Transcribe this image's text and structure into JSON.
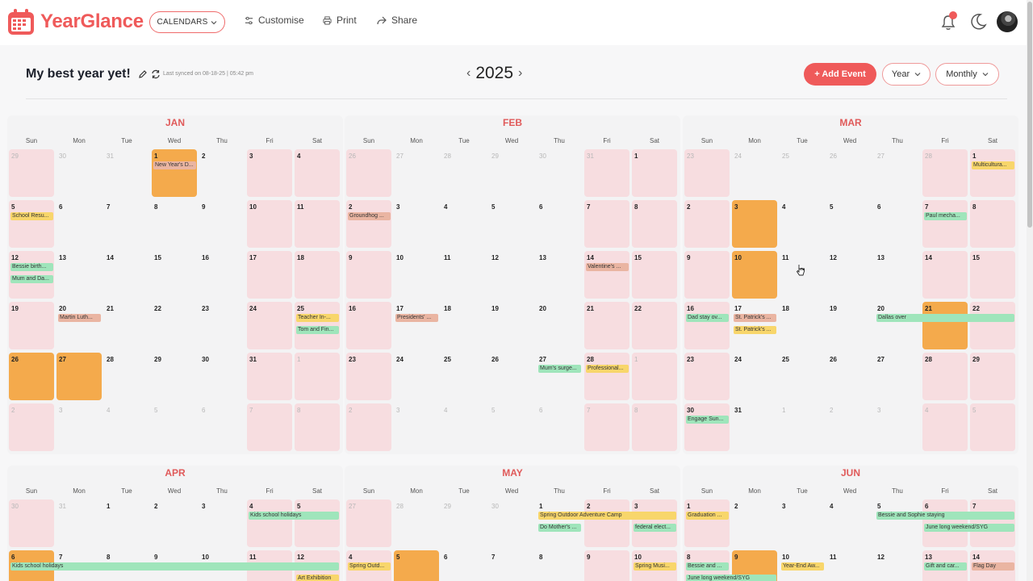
{
  "app": {
    "name": "YearGlance"
  },
  "topbar": {
    "calendars_label": "CALENDARS",
    "customise_label": "Customise",
    "print_label": "Print",
    "share_label": "Share"
  },
  "header": {
    "title": "My best year yet!",
    "sync_text": "Last synced on 08-18-25 | 05:42 pm",
    "year": "2025",
    "add_event_label": "+ Add Event",
    "view_select": "Year",
    "period_select": "Monthly"
  },
  "colors": {
    "accent": "#ef5a5a",
    "weekend": "#f7dde0",
    "highlight": "#f4aa4c",
    "event_yellow": "#f8d66b",
    "event_green": "#9fe5bb",
    "event_peach": "#eab5a2"
  },
  "weekdays": [
    "Sun",
    "Mon",
    "Tue",
    "Wed",
    "Thu",
    "Fri",
    "Sat"
  ],
  "months": [
    {
      "name": "JAN",
      "start": 29,
      "prevLen": 31,
      "len": 31,
      "offset": 3,
      "rows": 6,
      "highlights": [
        1,
        26,
        27
      ],
      "events": [
        {
          "day": 1,
          "label": "New Year's D...",
          "color": "p",
          "slot": 0
        },
        {
          "day": 5,
          "label": "School Resu...",
          "color": "y",
          "slot": 0
        },
        {
          "day": 12,
          "label": "Bessie birth...",
          "color": "g",
          "slot": 0
        },
        {
          "day": 12,
          "label": "Mum and Da...",
          "color": "g",
          "slot": 1
        },
        {
          "day": 20,
          "label": "Martin Luth...",
          "color": "p",
          "slot": 0
        },
        {
          "day": 25,
          "label": "Teacher In-...",
          "color": "y",
          "slot": 0
        },
        {
          "day": 25,
          "label": "Tom and Fin...",
          "color": "g",
          "slot": 1
        }
      ]
    },
    {
      "name": "FEB",
      "start": 26,
      "prevLen": 31,
      "len": 28,
      "offset": 6,
      "rows": 6,
      "highlights": [],
      "events": [
        {
          "day": 2,
          "label": "Groundhog ...",
          "color": "p",
          "slot": 0
        },
        {
          "day": 14,
          "label": "Valentine's ...",
          "color": "p",
          "slot": 0
        },
        {
          "day": 17,
          "label": "Presidents' ...",
          "color": "p",
          "slot": 0
        },
        {
          "day": 27,
          "label": "Mum's surge...",
          "color": "g",
          "slot": 0
        },
        {
          "day": 28,
          "label": "Professional...",
          "color": "y",
          "slot": 0
        }
      ]
    },
    {
      "name": "MAR",
      "start": 23,
      "prevLen": 28,
      "len": 31,
      "offset": 6,
      "rows": 6,
      "highlights": [
        3,
        10,
        21
      ],
      "events": [
        {
          "day": 1,
          "label": "Multicultura...",
          "color": "y",
          "slot": 0
        },
        {
          "day": 7,
          "label": "Paul mecha...",
          "color": "g",
          "slot": 0
        },
        {
          "day": 16,
          "label": "Dad stay ov...",
          "color": "g",
          "slot": 0
        },
        {
          "day": 17,
          "label": "St. Patrick's ...",
          "color": "p",
          "slot": 0
        },
        {
          "day": 17,
          "label": "St. Patrick's ...",
          "color": "y",
          "slot": 1
        },
        {
          "day": 20,
          "label": "Dallas over",
          "color": "g",
          "slot": 0,
          "span": 3
        },
        {
          "day": 30,
          "label": "Engage Sun...",
          "color": "g",
          "slot": 0
        }
      ]
    },
    {
      "name": "APR",
      "start": 30,
      "prevLen": 31,
      "len": 30,
      "offset": 2,
      "rows": 2,
      "highlights": [
        6
      ],
      "events": [
        {
          "day": 4,
          "label": "Kids school holidays",
          "color": "g",
          "slot": 0,
          "span": 2
        },
        {
          "day": 6,
          "label": "Kids school holidays",
          "color": "g",
          "slot": 0,
          "span": 7
        },
        {
          "day": 12,
          "label": "Art Exhibition",
          "color": "y",
          "slot": 1
        }
      ]
    },
    {
      "name": "MAY",
      "start": 27,
      "prevLen": 30,
      "len": 31,
      "offset": 4,
      "rows": 2,
      "highlights": [
        5
      ],
      "events": [
        {
          "day": 1,
          "label": "Spring Outdoor Adventure Camp",
          "color": "y",
          "slot": 0,
          "span": 3
        },
        {
          "day": 1,
          "label": "Do Mother's ...",
          "color": "g",
          "slot": 1
        },
        {
          "day": 3,
          "label": "federal elect...",
          "color": "g",
          "slot": 1
        },
        {
          "day": 4,
          "label": "Spring Outd...",
          "color": "y",
          "slot": 0
        },
        {
          "day": 10,
          "label": "Spring Musi...",
          "color": "y",
          "slot": 0
        }
      ]
    },
    {
      "name": "JUN",
      "start": 1,
      "prevLen": 31,
      "len": 30,
      "offset": 0,
      "rows": 2,
      "highlights": [
        9
      ],
      "events": [
        {
          "day": 1,
          "label": "Graduation ...",
          "color": "y",
          "slot": 0
        },
        {
          "day": 5,
          "label": "Bessie and Sophie staying",
          "color": "g",
          "slot": 0,
          "span": 3
        },
        {
          "day": 6,
          "label": "June long weekend/SYG",
          "color": "g",
          "slot": 1,
          "span": 2
        },
        {
          "day": 8,
          "label": "Bessie and ...",
          "color": "g",
          "slot": 0
        },
        {
          "day": 8,
          "label": "June long weekend/SYG",
          "color": "g",
          "slot": 1,
          "span": 2
        },
        {
          "day": 10,
          "label": "Year-End Aw...",
          "color": "y",
          "slot": 0
        },
        {
          "day": 13,
          "label": "Gift and car...",
          "color": "g",
          "slot": 0
        },
        {
          "day": 14,
          "label": "Flag Day",
          "color": "p",
          "slot": 0
        }
      ]
    }
  ]
}
